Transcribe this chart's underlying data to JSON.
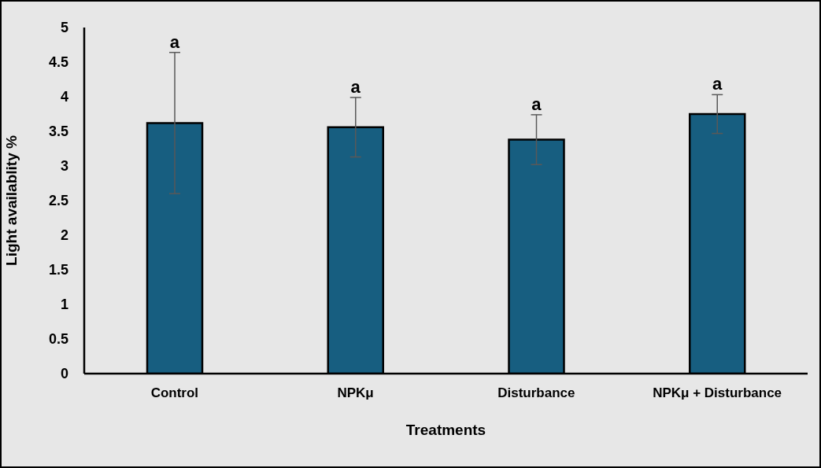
{
  "chart_data": {
    "type": "bar",
    "xlabel": "Treatments",
    "ylabel": "Light availablity %",
    "categories": [
      "Control",
      "NPKμ",
      "Disturbance",
      "NPKμ + Disturbance"
    ],
    "values": [
      3.62,
      3.56,
      3.38,
      3.75
    ],
    "errors": [
      1.02,
      0.43,
      0.36,
      0.28
    ],
    "color": "#175e80",
    "ylim": [
      0,
      5
    ],
    "yticks": [
      0,
      0.5,
      1,
      1.5,
      2,
      2.5,
      3,
      3.5,
      4,
      4.5,
      5
    ],
    "grid": false,
    "annotations": [
      {
        "text": "a",
        "x": "Control",
        "y": 4.64
      },
      {
        "text": "a",
        "x": "NPKμ",
        "y": 3.99
      },
      {
        "text": "a",
        "x": "Disturbance",
        "y": 3.74
      },
      {
        "text": "a",
        "x": "NPKμ + Disturbance",
        "y": 4.03
      }
    ]
  }
}
